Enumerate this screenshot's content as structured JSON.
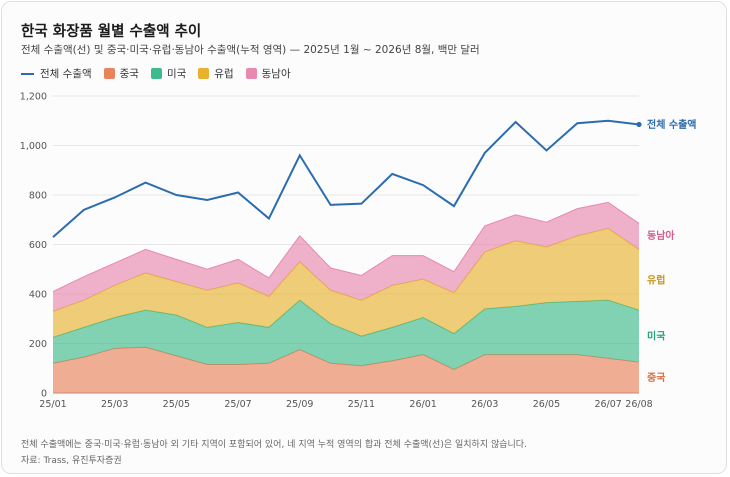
{
  "title": "한국 화장품 월별 수출액 추이",
  "subtitle": "전체 수출액(선) 및 중국·미국·유럽·동남아 수출액(누적 영역) — 2025년 1월 ~ 2026년 8월, 백만 달러",
  "legend": [
    {
      "label": "전체 수출액",
      "color": "#2b6cb0",
      "kind": "line"
    },
    {
      "label": "중국",
      "color": "#e8845a",
      "kind": "box"
    },
    {
      "label": "미국",
      "color": "#3dbb8b",
      "kind": "box"
    },
    {
      "label": "유럽",
      "color": "#e8b22f",
      "kind": "box"
    },
    {
      "label": "동남아",
      "color": "#e889af",
      "kind": "box"
    }
  ],
  "note": "전체 수출액에는 중국·미국·유럽·동남아 외 기타 지역이 포함되어 있어, 네 지역 누적 영역의 합과 전체 수출액(선)은 일치하지 않습니다.",
  "source": "자료: Trass, 유진투자증권",
  "chart_data": {
    "type": "area",
    "stacked": true,
    "x": [
      "25/01",
      "25/02",
      "25/03",
      "25/04",
      "25/05",
      "25/06",
      "25/07",
      "25/08",
      "25/09",
      "25/10",
      "25/11",
      "25/12",
      "26/01",
      "26/02",
      "26/03",
      "26/04",
      "26/05",
      "26/06",
      "26/07",
      "26/08"
    ],
    "x_tick_labels": [
      "25/01",
      "25/03",
      "25/05",
      "25/07",
      "25/09",
      "25/11",
      "26/01",
      "26/03",
      "26/05",
      "26/07",
      "26/08"
    ],
    "ylim": [
      0,
      1200
    ],
    "yticks": [
      "0",
      "200",
      "400",
      "600",
      "800",
      "1,000",
      "1,200"
    ],
    "grid": true,
    "series": [
      {
        "name": "중국",
        "color": "#e8845a",
        "values": [
          120,
          145,
          180,
          185,
          150,
          115,
          115,
          120,
          175,
          120,
          110,
          130,
          155,
          95,
          155,
          155,
          155,
          155,
          140,
          125
        ]
      },
      {
        "name": "미국",
        "color": "#3dbb8b",
        "values": [
          105,
          120,
          125,
          150,
          165,
          150,
          170,
          145,
          200,
          160,
          120,
          135,
          150,
          145,
          185,
          195,
          210,
          215,
          235,
          210
        ]
      },
      {
        "name": "유럽",
        "color": "#e8b22f",
        "values": [
          105,
          110,
          130,
          150,
          135,
          150,
          160,
          125,
          155,
          135,
          145,
          170,
          155,
          165,
          230,
          265,
          225,
          265,
          290,
          245
        ]
      },
      {
        "name": "동남아",
        "color": "#e889af",
        "values": [
          80,
          95,
          90,
          95,
          90,
          85,
          95,
          75,
          105,
          90,
          100,
          120,
          95,
          85,
          105,
          105,
          100,
          110,
          105,
          105
        ]
      }
    ],
    "line": {
      "name": "전체 수출액",
      "color": "#2b6cb0",
      "values": [
        630,
        740,
        790,
        850,
        800,
        780,
        810,
        705,
        960,
        760,
        765,
        885,
        840,
        755,
        970,
        1095,
        980,
        1090,
        1100,
        1085
      ]
    },
    "end_labels": [
      {
        "label": "전체 수출액",
        "color": "#2b6cb0"
      },
      {
        "label": "동남아",
        "color": "#d85c8f"
      },
      {
        "label": "유럽",
        "color": "#c9951c"
      },
      {
        "label": "미국",
        "color": "#26a374"
      },
      {
        "label": "중국",
        "color": "#d96a3d"
      }
    ]
  }
}
